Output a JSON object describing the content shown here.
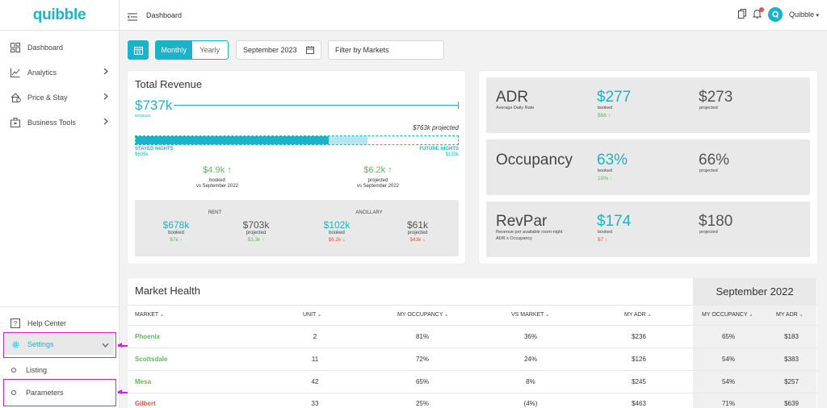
{
  "app": {
    "logo": "quibble"
  },
  "sidebar": {
    "items": [
      {
        "label": "Dashboard",
        "icon": "dashboard-icon"
      },
      {
        "label": "Analytics",
        "icon": "analytics-icon"
      },
      {
        "label": "Price & Stay",
        "icon": "price-stay-icon"
      },
      {
        "label": "Business Tools",
        "icon": "business-tools-icon"
      }
    ],
    "help": "Help Center",
    "settings": "Settings",
    "sub": [
      "Listing",
      "Parameters"
    ]
  },
  "header": {
    "breadcrumb": "Dashboard",
    "user": "Quibble"
  },
  "toolbar": {
    "monthly": "Monthly",
    "yearly": "Yearly",
    "date": "September 2023",
    "filter": "Filter by Markets"
  },
  "revenue": {
    "title": "Total Revenue",
    "booked_value": "$737k",
    "booked_label": "BOOKED",
    "projected": "$763k projected",
    "stayed_label": "STAYED NIGHTS",
    "stayed_value": "$605k",
    "future_label": "FUTURE NIGHTS",
    "future_value": "$133k",
    "stayed_fraction": 0.6,
    "future_fraction": 0.12,
    "delta_booked": {
      "value": "$4.9k",
      "label": "booked",
      "vs": "vs September 2022"
    },
    "delta_projected": {
      "value": "$6.2k",
      "label": "projected",
      "vs": "vs September 2022"
    },
    "rent": {
      "title": "RENT",
      "booked": "$678k",
      "booked_label": "booked",
      "booked_delta": "$7k",
      "projected": "$703k",
      "projected_label": "projected",
      "projected_delta": "$3.3k"
    },
    "ancillary": {
      "title": "ANCILLARY",
      "booked": "$102k",
      "booked_label": "booked",
      "booked_delta": "$6.2k",
      "projected": "$61k",
      "projected_label": "projected",
      "projected_delta": "$43k"
    }
  },
  "metrics": [
    {
      "name": "ADR",
      "sub1": "Average Daily Rate",
      "sub2": "",
      "booked": "$277",
      "booked_label": "booked",
      "delta": "$66",
      "dir": "up",
      "projected": "$273",
      "projected_label": "projected"
    },
    {
      "name": "Occupancy",
      "sub1": "",
      "sub2": "",
      "booked": "63%",
      "booked_label": "booked",
      "delta": "10%",
      "dir": "up",
      "projected": "66%",
      "projected_label": "projected"
    },
    {
      "name": "RevPar",
      "sub1": "Revenue per available room-night",
      "sub2": "ADR x Occupancy",
      "booked": "$174",
      "booked_label": "booked",
      "delta": "$7",
      "dir": "down",
      "projected": "$180",
      "projected_label": "projected"
    }
  ],
  "market_health": {
    "title": "Market Health",
    "compare_title": "September 2022",
    "columns": [
      "MARKET",
      "UNIT",
      "MY OCCUPANCY",
      "VS MARKET",
      "MY ADR",
      "MY OCCUPANCY",
      "MY ADR"
    ],
    "rows": [
      {
        "market": "Phoenix",
        "unit": "2",
        "occ": "81%",
        "vs": "36%",
        "adr": "$236",
        "p_occ": "65%",
        "p_adr": "$183"
      },
      {
        "market": "Scottsdale",
        "unit": "11",
        "occ": "72%",
        "vs": "24%",
        "adr": "$126",
        "p_occ": "54%",
        "p_adr": "$383"
      },
      {
        "market": "Mesa",
        "unit": "42",
        "occ": "65%",
        "vs": "8%",
        "adr": "$245",
        "p_occ": "54%",
        "p_adr": "$257"
      },
      {
        "market": "Gilbert",
        "unit": "33",
        "occ": "25%",
        "vs": "(4%)",
        "adr": "$463",
        "p_occ": "71%",
        "p_adr": "$639"
      }
    ]
  },
  "colors": {
    "accent": "#1bb3c9",
    "positive": "#5cb85c",
    "negative": "#e8553f",
    "highlight": "#e21ad8"
  }
}
